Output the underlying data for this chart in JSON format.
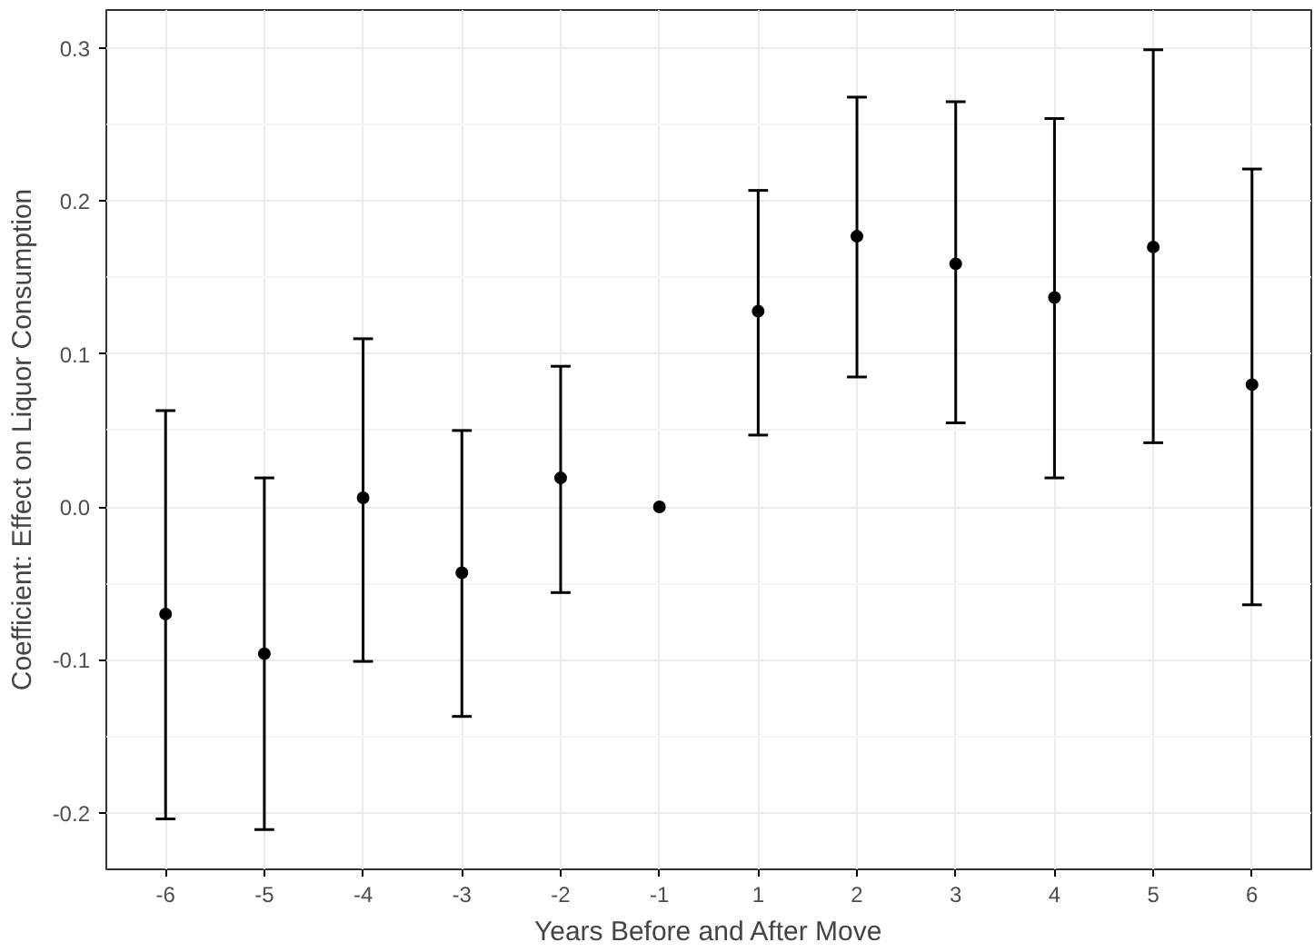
{
  "chart_data": {
    "type": "scatter",
    "xlabel": "Years Before and After Move",
    "ylabel": "Coefficient: Effect on Liquor Consumption",
    "categories": [
      "-6",
      "-5",
      "-4",
      "-3",
      "-2",
      "-1",
      "1",
      "2",
      "3",
      "4",
      "5",
      "6"
    ],
    "values": [
      -0.07,
      -0.096,
      0.006,
      -0.043,
      0.019,
      0.0,
      0.128,
      0.177,
      0.159,
      0.137,
      0.17,
      0.08
    ],
    "errors": [
      [
        -0.204,
        0.063
      ],
      [
        -0.211,
        0.019
      ],
      [
        -0.101,
        0.11
      ],
      [
        -0.137,
        0.05
      ],
      [
        -0.056,
        0.092
      ],
      null,
      [
        0.047,
        0.207
      ],
      [
        0.085,
        0.268
      ],
      [
        0.055,
        0.265
      ],
      [
        0.019,
        0.254
      ],
      [
        0.042,
        0.299
      ],
      [
        -0.064,
        0.221
      ]
    ],
    "color": "#000000",
    "marker": "circle",
    "grid": true,
    "ylim": [
      -0.237,
      0.325
    ],
    "yticks": [
      {
        "value": -0.2,
        "label": "-0.2"
      },
      {
        "value": -0.1,
        "label": "-0.1"
      },
      {
        "value": 0.0,
        "label": "0.0"
      },
      {
        "value": 0.1,
        "label": "0.1"
      },
      {
        "value": 0.2,
        "label": "0.2"
      },
      {
        "value": 0.3,
        "label": "0.3"
      }
    ]
  }
}
